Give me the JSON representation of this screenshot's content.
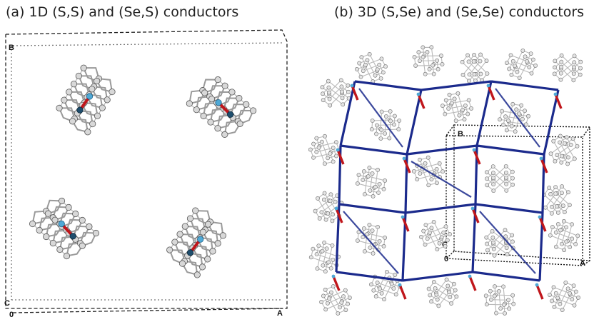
{
  "panel_a": {
    "title": "(a) 1D (S,S) and (Se,S) conductors",
    "axes": {
      "b": "B",
      "c": "C",
      "origin": "0",
      "a": "A"
    }
  },
  "panel_b": {
    "title": "(b) 3D (S,Se) and (Se,Se) conductors",
    "axes": {
      "b": "B",
      "c": "C",
      "origin": "0",
      "a": "A"
    }
  },
  "colors": {
    "network": "#1b2a8c",
    "bond_red": "#c0161b",
    "atom_blue": "#4fa9d6",
    "atom_grey": "#d8d8d8",
    "skeleton": "#9a9a9a",
    "cell": "#222222"
  },
  "icons": [
    "molecule-stack",
    "unit-cell-box",
    "network-lattice"
  ]
}
